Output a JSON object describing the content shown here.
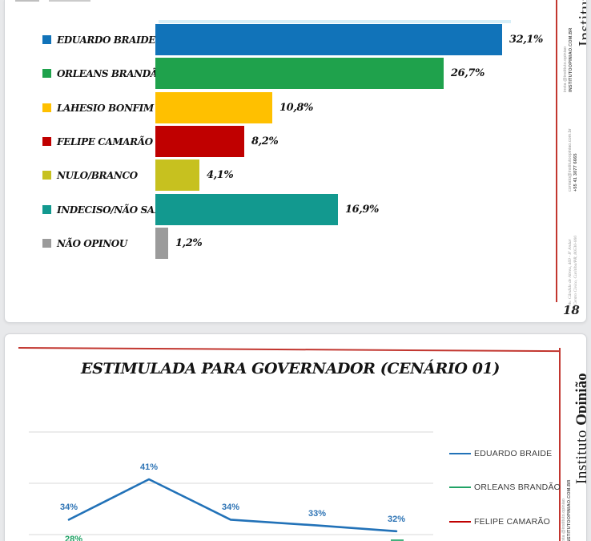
{
  "canvas": {
    "background": "#e8e9eb",
    "slide_background": "#ffffff",
    "accent_red": "#c2362f",
    "gridline_color": "#d9d9d9"
  },
  "page_number": "18",
  "branding": {
    "name_regular": "Instituto ",
    "name_bold": "Opinião",
    "insta_line": "insta @instituto.opiniao",
    "site_line": "INSTITUTOOPINIAO.COM.BR",
    "email_line": "contato@institutoopiniao.com.br",
    "phone_line": "+55 41 3077 6665",
    "address_line1": "Av. Cândido de Abreu, 469 - 8º Andar",
    "address_line2": "Centro Cívico, Curitiba/PR, 80530-000"
  },
  "chart_data": [
    {
      "type": "bar",
      "slide": 1,
      "orientation": "horizontal",
      "title": "",
      "categories": [
        "EDUARDO BRAIDE",
        "ORLEANS BRANDÃO",
        "LAHESIO BONFIM",
        "FELIPE CAMARÃO",
        "NULO/BRANCO",
        "INDECISO/NÃO SABE",
        "NÃO OPINOU"
      ],
      "values": [
        32.1,
        26.7,
        10.8,
        8.2,
        4.1,
        16.9,
        1.2
      ],
      "value_labels": [
        "32,1%",
        "26,7%",
        "10,8%",
        "8,2%",
        "4,1%",
        "16,9%",
        "1,2%"
      ],
      "colors": [
        "#1173b9",
        "#1fa24c",
        "#ffc000",
        "#c00000",
        "#c7c11f",
        "#12998f",
        "#9b9b9b"
      ],
      "xlim": [
        0,
        35
      ],
      "grid": false,
      "legend_position": "left"
    },
    {
      "type": "line",
      "slide": 2,
      "title": "ESTIMULADA PARA GOVERNADOR (CENÁRIO 01)",
      "x_count": 5,
      "series": [
        {
          "name": "EDUARDO BRAIDE",
          "color": "#2272b8",
          "label_color": "#2e74b5",
          "values": [
            34,
            41,
            34,
            33,
            32
          ],
          "labels": [
            "34%",
            "41%",
            "34%",
            "33%",
            "32%"
          ],
          "partially_visible": false
        },
        {
          "name": "ORLEANS BRANDÃO",
          "color": "#21a366",
          "label_color": "#21a366",
          "values": [
            28
          ],
          "labels": [
            "28%"
          ],
          "partially_visible": true
        },
        {
          "name": "FELIPE CAMARÃO",
          "color": "#c00000",
          "label_color": "#c00000",
          "values": [],
          "labels": [],
          "partially_visible": true
        }
      ],
      "legend": [
        "EDUARDO BRAIDE",
        "ORLEANS BRANDÃO",
        "FELIPE CAMARÃO"
      ],
      "legend_position": "right",
      "grid": true,
      "gridlines_visible": 3,
      "ylim_visible": [
        28,
        41
      ]
    }
  ]
}
